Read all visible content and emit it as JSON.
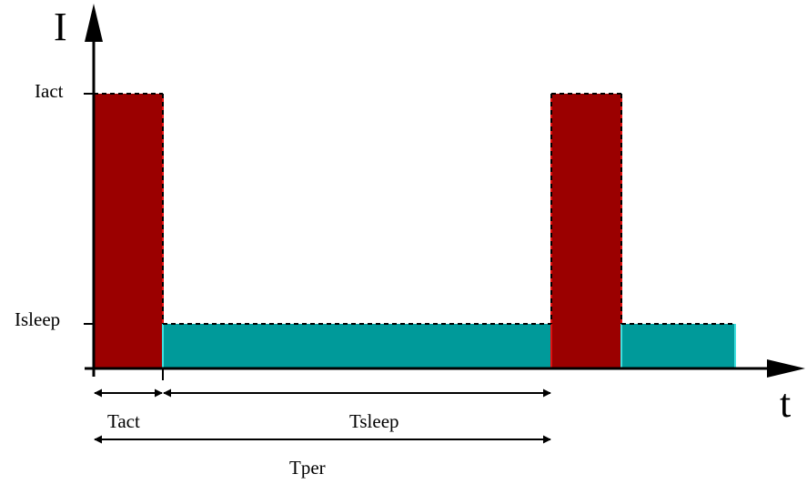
{
  "axes": {
    "y_label": "I",
    "x_label": "t"
  },
  "levels": {
    "active_label": "Iact",
    "sleep_label": "Isleep"
  },
  "intervals": {
    "active_label": "Tact",
    "sleep_label": "Tsleep",
    "period_label": "Tper"
  },
  "colors": {
    "active_fill": "#9b0000",
    "sleep_fill": "#009a9a",
    "active_edge": "#e01010",
    "sleep_edge": "#40e0e0",
    "axis": "#000000"
  }
}
